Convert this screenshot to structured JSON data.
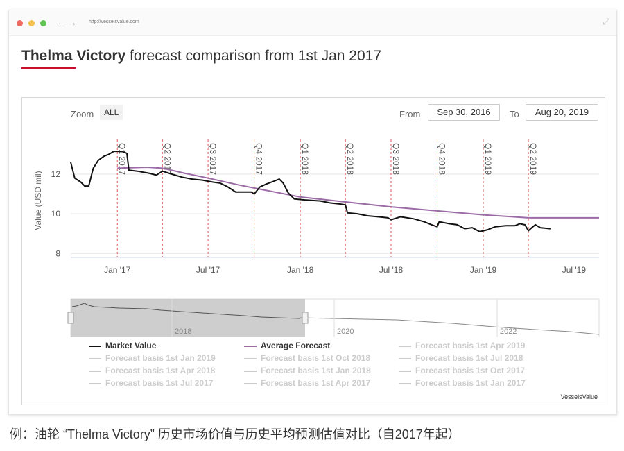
{
  "browser": {
    "url": "http://vesselsvalue.com",
    "dot_colors": [
      "#ec6a5e",
      "#f4bf4f",
      "#61c554"
    ]
  },
  "title": {
    "vessel_name": "Thelma Victory",
    "rest": "forecast comparison from 1st Jan 2017",
    "underline_color": "#c8102e"
  },
  "controls": {
    "zoom_label": "Zoom",
    "zoom_all": "ALL",
    "from_label": "From",
    "from_value": "Sep 30, 2016",
    "to_label": "To",
    "to_value": "Aug 20, 2019"
  },
  "chart_data": {
    "type": "line",
    "ylabel": "Value (USD mil)",
    "y_ticks": [
      "8",
      "10",
      "12"
    ],
    "ylim": [
      7.8,
      14.1
    ],
    "xlim": [
      "2016-09-30",
      "2019-08-20"
    ],
    "x_ticks": [
      {
        "label": "Jan '17",
        "date": "2017-01-01"
      },
      {
        "label": "Jul '17",
        "date": "2017-07-01"
      },
      {
        "label": "Jan '18",
        "date": "2018-01-01"
      },
      {
        "label": "Jul '18",
        "date": "2018-07-01"
      },
      {
        "label": "Jan '19",
        "date": "2019-01-01"
      },
      {
        "label": "Jul '19",
        "date": "2019-07-01"
      }
    ],
    "grid": "horizontal",
    "quarter_markers": [
      {
        "label": "Q1 2017",
        "date": "2017-01-01"
      },
      {
        "label": "Q2 2017",
        "date": "2017-04-01"
      },
      {
        "label": "Q3 2017",
        "date": "2017-07-01"
      },
      {
        "label": "Q4 2017",
        "date": "2017-10-01"
      },
      {
        "label": "Q1 2018",
        "date": "2018-01-01"
      },
      {
        "label": "Q2 2018",
        "date": "2018-04-01"
      },
      {
        "label": "Q3 2018",
        "date": "2018-07-01"
      },
      {
        "label": "Q4 2018",
        "date": "2018-10-01"
      },
      {
        "label": "Q1 2019",
        "date": "2019-01-01"
      },
      {
        "label": "Q2 2019",
        "date": "2019-04-01"
      }
    ],
    "marker_color": "#e05a5a",
    "series": [
      {
        "name": "Market Value",
        "color": "#111111",
        "points": [
          [
            "2016-09-30",
            12.6
          ],
          [
            "2016-10-08",
            11.8
          ],
          [
            "2016-10-20",
            11.6
          ],
          [
            "2016-10-28",
            11.4
          ],
          [
            "2016-11-05",
            11.4
          ],
          [
            "2016-11-14",
            12.3
          ],
          [
            "2016-11-24",
            12.7
          ],
          [
            "2016-12-05",
            12.9
          ],
          [
            "2016-12-15",
            13.0
          ],
          [
            "2016-12-25",
            13.15
          ],
          [
            "2017-01-10",
            13.15
          ],
          [
            "2017-01-20",
            13.05
          ],
          [
            "2017-01-24",
            12.2
          ],
          [
            "2017-02-10",
            12.15
          ],
          [
            "2017-03-05",
            12.05
          ],
          [
            "2017-03-20",
            11.95
          ],
          [
            "2017-04-01",
            12.15
          ],
          [
            "2017-04-20",
            12.0
          ],
          [
            "2017-05-10",
            11.85
          ],
          [
            "2017-05-30",
            11.75
          ],
          [
            "2017-06-20",
            11.7
          ],
          [
            "2017-07-10",
            11.6
          ],
          [
            "2017-07-25",
            11.55
          ],
          [
            "2017-08-10",
            11.35
          ],
          [
            "2017-08-25",
            11.1
          ],
          [
            "2017-09-25",
            11.1
          ],
          [
            "2017-10-01",
            11.0
          ],
          [
            "2017-10-12",
            11.35
          ],
          [
            "2017-10-25",
            11.5
          ],
          [
            "2017-11-10",
            11.65
          ],
          [
            "2017-11-20",
            11.75
          ],
          [
            "2017-11-28",
            11.55
          ],
          [
            "2017-12-08",
            11.05
          ],
          [
            "2017-12-20",
            10.75
          ],
          [
            "2018-01-10",
            10.7
          ],
          [
            "2018-02-10",
            10.65
          ],
          [
            "2018-03-01",
            10.55
          ],
          [
            "2018-03-20",
            10.5
          ],
          [
            "2018-04-01",
            10.45
          ],
          [
            "2018-04-05",
            10.05
          ],
          [
            "2018-04-25",
            10.0
          ],
          [
            "2018-05-15",
            9.9
          ],
          [
            "2018-06-05",
            9.85
          ],
          [
            "2018-06-25",
            9.8
          ],
          [
            "2018-07-01",
            9.7
          ],
          [
            "2018-07-20",
            9.85
          ],
          [
            "2018-08-15",
            9.75
          ],
          [
            "2018-09-05",
            9.6
          ],
          [
            "2018-09-20",
            9.45
          ],
          [
            "2018-10-01",
            9.35
          ],
          [
            "2018-10-05",
            9.6
          ],
          [
            "2018-10-25",
            9.5
          ],
          [
            "2018-11-10",
            9.45
          ],
          [
            "2018-11-25",
            9.25
          ],
          [
            "2018-12-10",
            9.3
          ],
          [
            "2018-12-25",
            9.1
          ],
          [
            "2019-01-10",
            9.2
          ],
          [
            "2019-01-25",
            9.35
          ],
          [
            "2019-02-15",
            9.4
          ],
          [
            "2019-03-05",
            9.4
          ],
          [
            "2019-03-15",
            9.5
          ],
          [
            "2019-03-25",
            9.45
          ],
          [
            "2019-04-01",
            9.15
          ],
          [
            "2019-04-10",
            9.35
          ],
          [
            "2019-04-15",
            9.45
          ],
          [
            "2019-04-25",
            9.3
          ],
          [
            "2019-05-15",
            9.25
          ]
        ]
      },
      {
        "name": "Average Forecast",
        "color": "#9b6ba6",
        "points": [
          [
            "2017-01-01",
            12.3
          ],
          [
            "2017-03-01",
            12.35
          ],
          [
            "2017-04-01",
            12.3
          ],
          [
            "2017-05-15",
            12.05
          ],
          [
            "2017-07-01",
            11.8
          ],
          [
            "2017-09-01",
            11.45
          ],
          [
            "2017-11-01",
            11.15
          ],
          [
            "2018-01-01",
            10.85
          ],
          [
            "2018-04-01",
            10.6
          ],
          [
            "2018-07-01",
            10.35
          ],
          [
            "2018-10-01",
            10.15
          ],
          [
            "2019-01-01",
            9.95
          ],
          [
            "2019-04-01",
            9.8
          ],
          [
            "2019-07-01",
            9.8
          ],
          [
            "2019-08-20",
            9.8
          ]
        ]
      }
    ]
  },
  "navigator": {
    "labels": [
      "2018",
      "2020",
      "2022"
    ]
  },
  "legend": {
    "items": [
      {
        "label": "Market Value",
        "color": "#111111",
        "text_color": "#333333",
        "col": 0,
        "row": 0
      },
      {
        "label": "Average Forecast",
        "color": "#9b6ba6",
        "text_color": "#333333",
        "col": 1,
        "row": 0
      },
      {
        "label": "Forecast basis 1st Apr 2019",
        "color": "#cccccc",
        "text_color": "#cccccc",
        "col": 2,
        "row": 0
      },
      {
        "label": "Forecast basis 1st Jan 2019",
        "color": "#cccccc",
        "text_color": "#cccccc",
        "col": 0,
        "row": 1
      },
      {
        "label": "Forecast basis 1st Oct 2018",
        "color": "#cccccc",
        "text_color": "#cccccc",
        "col": 1,
        "row": 1
      },
      {
        "label": "Forecast basis 1st Jul 2018",
        "color": "#cccccc",
        "text_color": "#cccccc",
        "col": 2,
        "row": 1
      },
      {
        "label": "Forecast basis 1st Apr 2018",
        "color": "#cccccc",
        "text_color": "#cccccc",
        "col": 0,
        "row": 2
      },
      {
        "label": "Forecast basis 1st Jan 2018",
        "color": "#cccccc",
        "text_color": "#cccccc",
        "col": 1,
        "row": 2
      },
      {
        "label": "Forecast basis 1st Oct 2017",
        "color": "#cccccc",
        "text_color": "#cccccc",
        "col": 2,
        "row": 2
      },
      {
        "label": "Forecast basis 1st Jul 2017",
        "color": "#cccccc",
        "text_color": "#cccccc",
        "col": 0,
        "row": 3
      },
      {
        "label": "Forecast basis 1st Apr 2017",
        "color": "#cccccc",
        "text_color": "#cccccc",
        "col": 1,
        "row": 3
      },
      {
        "label": "Forecast basis 1st Jan 2017",
        "color": "#cccccc",
        "text_color": "#cccccc",
        "col": 2,
        "row": 3
      }
    ]
  },
  "credit": "VesselsValue",
  "caption": "例：油轮 “Thelma Victory” 历史市场价值与历史平均预测估值对比（自2017年起）"
}
